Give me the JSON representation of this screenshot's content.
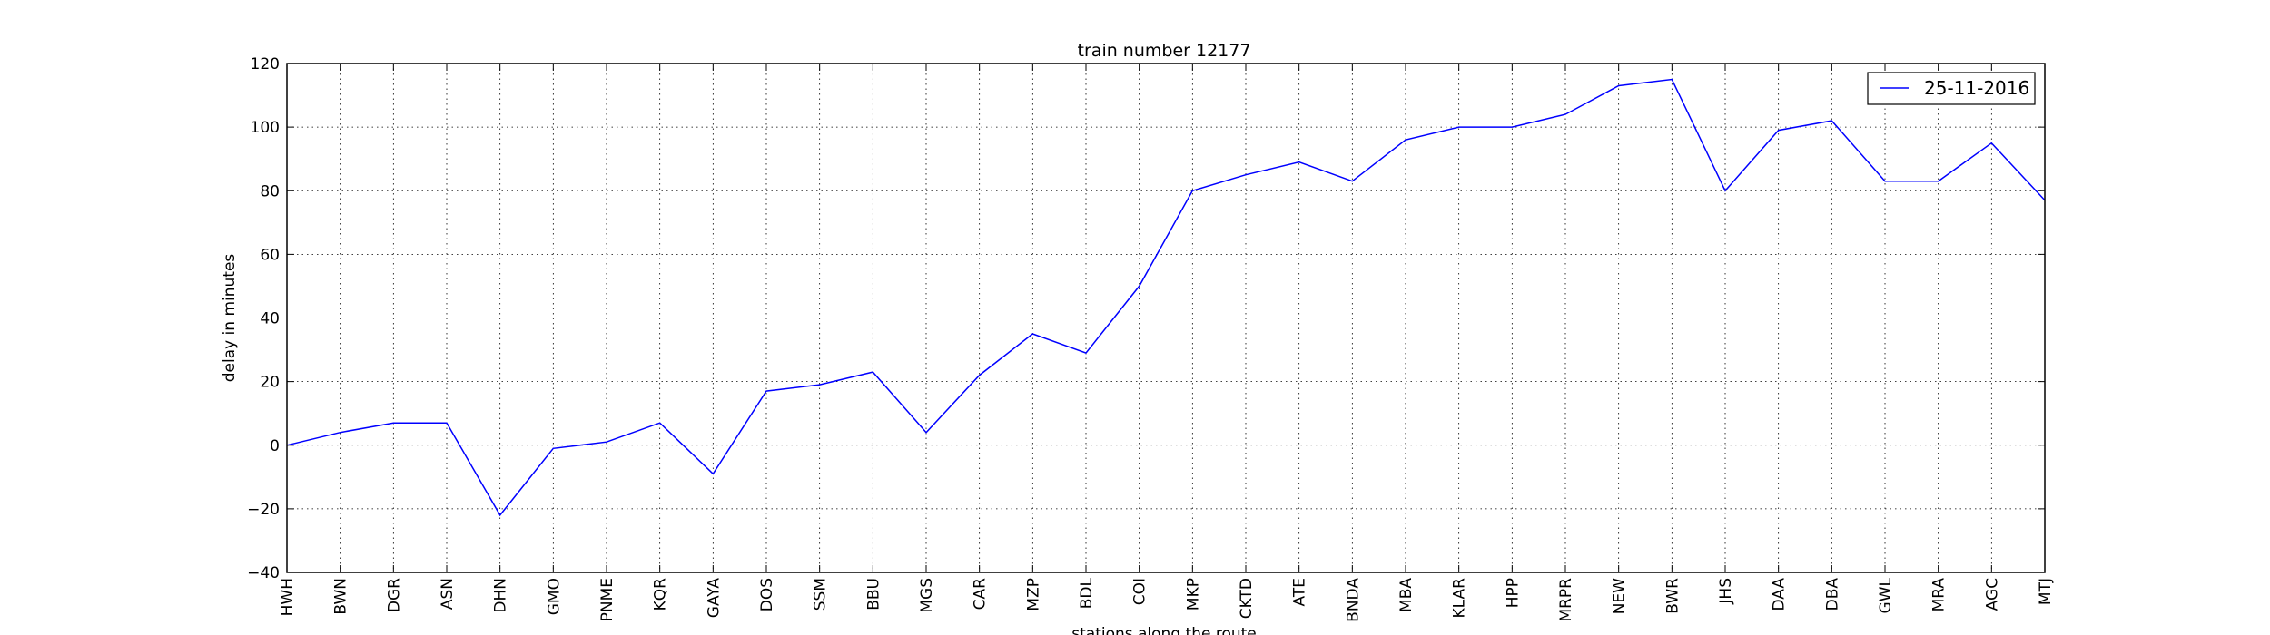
{
  "chart_data": {
    "type": "line",
    "title": "train number 12177",
    "xlabel": "stations along the route",
    "ylabel": "delay in minutes",
    "categories": [
      "HWH",
      "BWN",
      "DGR",
      "ASN",
      "DHN",
      "GMO",
      "PNME",
      "KQR",
      "GAYA",
      "DOS",
      "SSM",
      "BBU",
      "MGS",
      "CAR",
      "MZP",
      "BDL",
      "COI",
      "MKP",
      "CKTD",
      "ATE",
      "BNDA",
      "MBA",
      "KLAR",
      "HPP",
      "MRPR",
      "NEW",
      "BWR",
      "JHS",
      "DAA",
      "DBA",
      "GWL",
      "MRA",
      "AGC",
      "MTJ"
    ],
    "series": [
      {
        "name": "25-11-2016",
        "color": "#0000ff",
        "values": [
          0,
          4,
          7,
          7,
          -22,
          -1,
          1,
          7,
          -9,
          17,
          19,
          23,
          4,
          22,
          35,
          29,
          50,
          80,
          85,
          89,
          83,
          96,
          100,
          100,
          104,
          113,
          115,
          80,
          99,
          102,
          83,
          83,
          95,
          77
        ]
      }
    ],
    "ylim": [
      -40,
      120
    ],
    "yticks": [
      -40,
      -20,
      0,
      20,
      40,
      60,
      80,
      100,
      120
    ],
    "grid": true,
    "legend_position": "top-right"
  }
}
